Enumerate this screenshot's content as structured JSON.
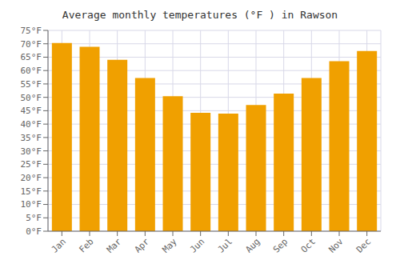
{
  "chart_data": {
    "type": "bar",
    "title": "Average monthly temperatures (°F ) in Rawson",
    "categories": [
      "Jan",
      "Feb",
      "Mar",
      "Apr",
      "May",
      "Jun",
      "Jul",
      "Aug",
      "Sep",
      "Oct",
      "Nov",
      "Dec"
    ],
    "values": [
      70.3,
      68.9,
      64.0,
      57.2,
      50.4,
      44.2,
      43.9,
      47.1,
      51.4,
      57.2,
      63.5,
      67.3
    ],
    "color": "#F0A000",
    "ylim": [
      0,
      75
    ],
    "yticks": [
      {
        "value": 0,
        "label": "0°F"
      },
      {
        "value": 5,
        "label": "5°F"
      },
      {
        "value": 10,
        "label": "10°F"
      },
      {
        "value": 15,
        "label": "15°F"
      },
      {
        "value": 20,
        "label": "20°F"
      },
      {
        "value": 25,
        "label": "25°F"
      },
      {
        "value": 30,
        "label": "30°F"
      },
      {
        "value": 35,
        "label": "35°F"
      },
      {
        "value": 40,
        "label": "40°F"
      },
      {
        "value": 45,
        "label": "45°F"
      },
      {
        "value": 50,
        "label": "50°F"
      },
      {
        "value": 55,
        "label": "55°F"
      },
      {
        "value": 60,
        "label": "60°F"
      },
      {
        "value": 65,
        "label": "65°F"
      },
      {
        "value": 70,
        "label": "70°F"
      },
      {
        "value": 75,
        "label": "75°F"
      }
    ],
    "grid": true
  }
}
